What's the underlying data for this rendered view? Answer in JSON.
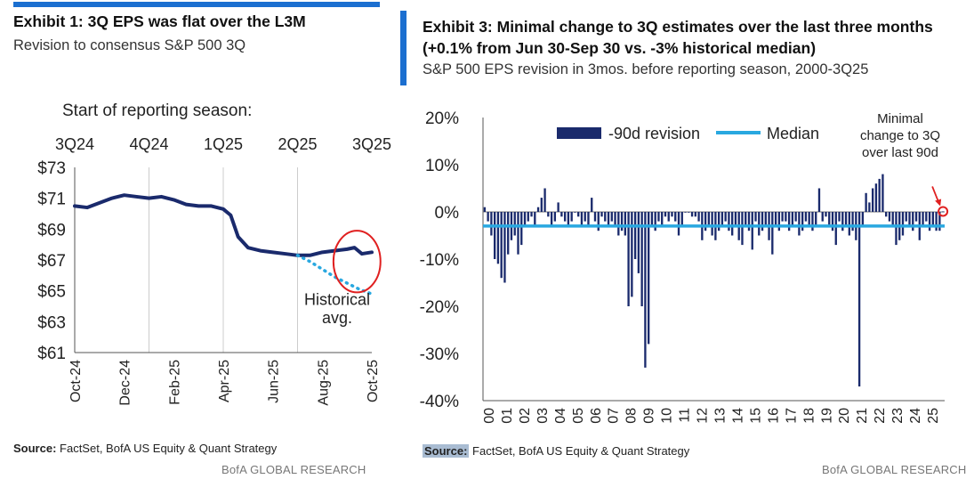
{
  "left": {
    "title": "Exhibit 1: 3Q EPS was flat over the L3M",
    "subtitle": "Revision to consensus S&P 500 3Q",
    "source_label": "Source:",
    "source_text": " FactSet, BofA US Equity & Quant Strategy",
    "brand": "BofA GLOBAL RESEARCH"
  },
  "right": {
    "title_line1": "Exhibit 3: Minimal change to 3Q estimates over the last three months",
    "title_line2": "(+0.1% from Jun 30-Sep 30 vs. -3% historical median)",
    "subtitle": "S&P 500 EPS revision in 3mos. before reporting season, 2000-3Q25",
    "source_label": "Source:",
    "source_text": " FactSet, BofA US Equity & Quant Strategy",
    "brand": "BofA GLOBAL RESEARCH"
  },
  "colors": {
    "accent": "#1b6fd0",
    "navy": "#1a2a6c",
    "median": "#29a8e0",
    "highlight": "#e02020",
    "grid": "#cccccc"
  },
  "chart_data": [
    {
      "type": "line",
      "ylabel": "",
      "xlabel": "",
      "ylim": [
        61,
        73
      ],
      "yticks": [
        61,
        63,
        65,
        67,
        69,
        71,
        73
      ],
      "ytick_labels": [
        "$61",
        "$63",
        "$65",
        "$67",
        "$69",
        "$71",
        "$73"
      ],
      "xlim": [
        0,
        12
      ],
      "xticks": [
        0,
        2,
        4,
        6,
        8,
        10,
        12
      ],
      "xtick_labels": [
        "Oct-24",
        "Dec-24",
        "Feb-25",
        "Apr-25",
        "Jun-25",
        "Aug-25",
        "Oct-25"
      ],
      "top_axis_title": "Start of reporting season:",
      "top_axis_ticks": [
        0,
        3,
        6,
        9,
        12
      ],
      "top_axis_labels": [
        "3Q24",
        "4Q24",
        "1Q25",
        "2Q25",
        "3Q25"
      ],
      "grid": "vertical at quarter starts",
      "series": [
        {
          "name": "",
          "style": "solid",
          "x": [
            0,
            0.5,
            1.0,
            1.5,
            2.0,
            2.5,
            3.0,
            3.5,
            4.0,
            4.5,
            5.0,
            5.5,
            6.0,
            6.3,
            6.6,
            7.0,
            7.5,
            8.0,
            8.5,
            9.0,
            9.5,
            10.0,
            10.5,
            11.0,
            11.3,
            11.6,
            12.0
          ],
          "y": [
            70.5,
            70.4,
            70.7,
            71.0,
            71.2,
            71.1,
            71.0,
            71.1,
            70.9,
            70.6,
            70.5,
            70.5,
            70.3,
            69.9,
            68.5,
            67.8,
            67.6,
            67.5,
            67.4,
            67.3,
            67.3,
            67.5,
            67.6,
            67.7,
            67.8,
            67.4,
            67.5
          ]
        },
        {
          "name": "",
          "style": "dotted",
          "x": [
            9.0,
            9.5,
            10.0,
            10.5,
            11.0,
            11.5,
            12.0
          ],
          "y": [
            67.3,
            66.9,
            66.4,
            65.9,
            65.5,
            65.1,
            64.8
          ]
        }
      ],
      "annotations": [
        {
          "text": "Historical",
          "x": 10.6,
          "y": 64.1
        },
        {
          "text": "avg.",
          "x": 10.6,
          "y": 62.9
        }
      ],
      "highlight_ellipse": {
        "x": 11.4,
        "y": 66.9,
        "rx": 0.95,
        "ry": 2.0
      }
    },
    {
      "type": "bar",
      "ylabel": "",
      "xlabel": "",
      "ylim": [
        -40,
        20
      ],
      "yticks": [
        -40,
        -30,
        -20,
        -10,
        0,
        10,
        20
      ],
      "ytick_labels": [
        "-40%",
        "-30%",
        "-20%",
        "-10%",
        "0%",
        "10%",
        "20%"
      ],
      "year_labels": [
        "00",
        "01",
        "02",
        "03",
        "04",
        "05",
        "06",
        "07",
        "08",
        "09",
        "10",
        "11",
        "12",
        "13",
        "14",
        "15",
        "16",
        "17",
        "18",
        "19",
        "20",
        "21",
        "22",
        "23",
        "24",
        "25"
      ],
      "legend": [
        "-90d revision",
        "Median"
      ],
      "legend_position": "top",
      "series": [
        {
          "name": "-90d revision",
          "values": [
            1,
            -2,
            -5,
            -10,
            -11,
            -14,
            -15,
            -9,
            -6,
            -5,
            -9,
            -7,
            -3,
            -2,
            -1,
            -3,
            1,
            3,
            5,
            -1,
            -3,
            -2,
            2,
            -1,
            -2,
            -3,
            -2,
            0,
            -1,
            -3,
            -2,
            -3,
            3,
            -2,
            -4,
            -1,
            -2,
            -3,
            -2,
            -3,
            -5,
            -4,
            -5,
            -20,
            -18,
            -10,
            -13,
            -20,
            -33,
            -28,
            -3,
            -4,
            -2,
            -3,
            -1,
            -2,
            -1,
            -2,
            -5,
            -3,
            0,
            0,
            -1,
            -1,
            -2,
            -6,
            -4,
            -3,
            -5,
            -6,
            -4,
            -3,
            -2,
            -4,
            -5,
            -3,
            -6,
            -7,
            -3,
            -4,
            -8,
            -2,
            -5,
            -4,
            -3,
            -6,
            -9,
            -3,
            -4,
            -2,
            -2,
            -4,
            -3,
            -2,
            -5,
            -4,
            -2,
            -3,
            -4,
            -3,
            5,
            -2,
            -1,
            -3,
            -4,
            -7,
            -2,
            -4,
            -3,
            -5,
            -4,
            -6,
            -37,
            -3,
            4,
            2,
            5,
            6,
            7,
            8,
            -1,
            -2,
            -3,
            -7,
            -6,
            -5,
            -2,
            -3,
            -4,
            -2,
            -6,
            -3,
            -2,
            -4,
            -3,
            -4,
            -4,
            0.1
          ]
        },
        {
          "name": "Median",
          "value": -3
        }
      ],
      "annotation": [
        "Minimal",
        "change to 3Q",
        "over last 90d"
      ]
    }
  ]
}
